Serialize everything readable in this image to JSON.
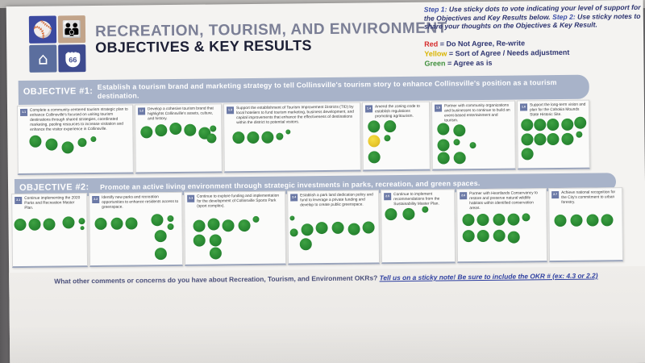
{
  "header": {
    "title_main": "RECREATION, TOURISM, AND ENVIRONMENT",
    "title_sub": "OBJECTIVES & KEY RESULTS",
    "logo_route_number": "66"
  },
  "instructions": {
    "step1_label": "Step 1:",
    "step1_text": "Use sticky dots to vote indicating your level of support for the Objectives and Key Results below.",
    "step2_label": "Step 2:",
    "step2_text": "Use sticky notes to share your thoughts on the Objectives & Key Result."
  },
  "legend": {
    "red": "Red",
    "red_text": " = Do Not Agree, Re-write",
    "yellow": "Yellow",
    "yellow_text": " = Sort of Agree / Needs adjustment",
    "green": "Green",
    "green_text": " = Agree as is"
  },
  "objective1": {
    "label": "OBJECTIVE #1:",
    "text": "Establish a tourism brand and marketing strategy to tell Collinsville's tourism story to enhance Collinsville's position as a tourism destination.",
    "cards": [
      {
        "num": "1.1",
        "text": "Complete a community-centered tourism strategic plan to enhance Collinsville's focused on uniting tourism destinations through shared strategies, coordinated marketing, pooling resources to increase visitation and enhance the visitor experience in Collinsville."
      },
      {
        "num": "1.2",
        "text": "Develop a cohesive tourism brand that highlights Collinsville's assets, culture, and history."
      },
      {
        "num": "1.3",
        "text": "Support the establishment of Tourism Improvement Districts (TID) by local hoteliers to fund tourism marketing, business development, and capital improvements that enhance the effectiveness of destinations within the district to potential visitors."
      },
      {
        "num": "1.4",
        "text": "Amend the zoning code to establish regulations promoting agritourism."
      },
      {
        "num": "1.5",
        "text": "Partner with community organizations and businesses to continue to build an event-based entertainment and tourism."
      },
      {
        "num": "1.6",
        "text": "Support the long-term vision and plan for the Cahokia Mounds State Historic Site."
      }
    ]
  },
  "objective2": {
    "label": "OBJECTIVE #2:",
    "text": "Promote an active living environment through strategic investments in parks, recreation, and green spaces.",
    "cards": [
      {
        "num": "2.1",
        "text": "Continue implementing the 2020 Parks and Recreation Master Plan."
      },
      {
        "num": "2.2",
        "text": "Identify new parks and recreation opportunities to enhance residents access to greenspace."
      },
      {
        "num": "2.3",
        "text": "Continue to explore funding and implementation for the development of Collinsville Sports Park (sport complex)."
      },
      {
        "num": "2.4",
        "text": "Establish a park land dedication policy and fund to leverage a private funding and develop to create public greenspace."
      },
      {
        "num": "2.5",
        "text": "Continue to implement recommendations from the Sustainability Master Plan."
      },
      {
        "num": "2.6",
        "text": "Partner with Heartlands Conservancy to restore and preserve natural wildlife habitats within identified conservation areas."
      },
      {
        "num": "2.7",
        "text": "Achieve national recognition for the City's commitment to urban forestry."
      }
    ]
  },
  "comments": {
    "question": "What other comments or concerns do you have about Recreation, Tourism, and Environment OKRs?",
    "cta": "Tell us on a sticky note! Be sure to include the OKR # (ex: 4.3 or 2.2)"
  },
  "votes": {
    "1.1": {
      "green": 6,
      "yellow": 0
    },
    "1.2": {
      "green": 7,
      "yellow": 0
    },
    "1.3": {
      "green": 5,
      "yellow": 0
    },
    "1.4": {
      "green": 5,
      "yellow": 1
    },
    "1.5": {
      "green": 7,
      "yellow": 0
    },
    "1.6": {
      "green": 11,
      "yellow": 0
    },
    "2.1": {
      "green": 6,
      "yellow": 0
    },
    "2.2": {
      "green": 8,
      "yellow": 0
    },
    "2.3": {
      "green": 8,
      "yellow": 0
    },
    "2.4": {
      "green": 8,
      "yellow": 0
    },
    "2.5": {
      "green": 3,
      "yellow": 0
    },
    "2.6": {
      "green": 9,
      "yellow": 0
    },
    "2.7": {
      "green": 4,
      "yellow": 0
    }
  },
  "colors": {
    "banner": "#a8b3c9",
    "green_dot": "#2a8a33",
    "yellow_dot": "#e8c72c",
    "title_dark": "#1c1f35"
  }
}
